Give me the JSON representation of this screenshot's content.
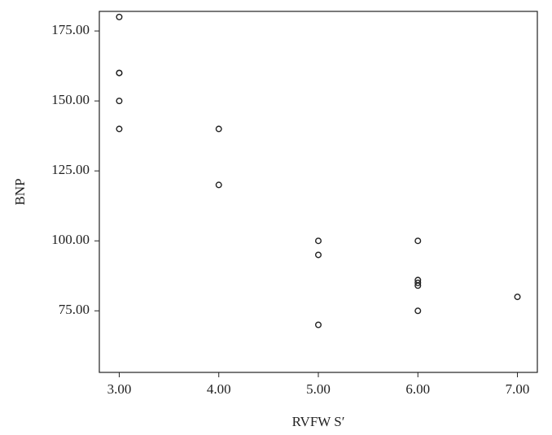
{
  "chart_data": {
    "type": "scatter",
    "x_label": "RVFW S′",
    "y_label": "BNP",
    "x": [
      3,
      3,
      3,
      3,
      3,
      4,
      4,
      5,
      5,
      5,
      6,
      6,
      6,
      6,
      6,
      7
    ],
    "y": [
      180,
      160,
      160,
      150,
      140,
      140,
      120,
      100,
      95,
      70,
      100,
      86,
      85,
      84,
      75,
      80
    ],
    "color": "#222222",
    "xlim": [
      2.8,
      7.2
    ],
    "ylim": [
      53,
      182
    ],
    "xticks": [
      {
        "value": 3,
        "label": "3.00"
      },
      {
        "value": 4,
        "label": "4.00"
      },
      {
        "value": 5,
        "label": "5.00"
      },
      {
        "value": 6,
        "label": "6.00"
      },
      {
        "value": 7,
        "label": "7.00"
      }
    ],
    "yticks": [
      {
        "value": 75,
        "label": "75.00"
      },
      {
        "value": 100,
        "label": "100.00"
      },
      {
        "value": 125,
        "label": "125.00"
      },
      {
        "value": 150,
        "label": "150.00"
      },
      {
        "value": 175,
        "label": "175.00"
      }
    ]
  }
}
